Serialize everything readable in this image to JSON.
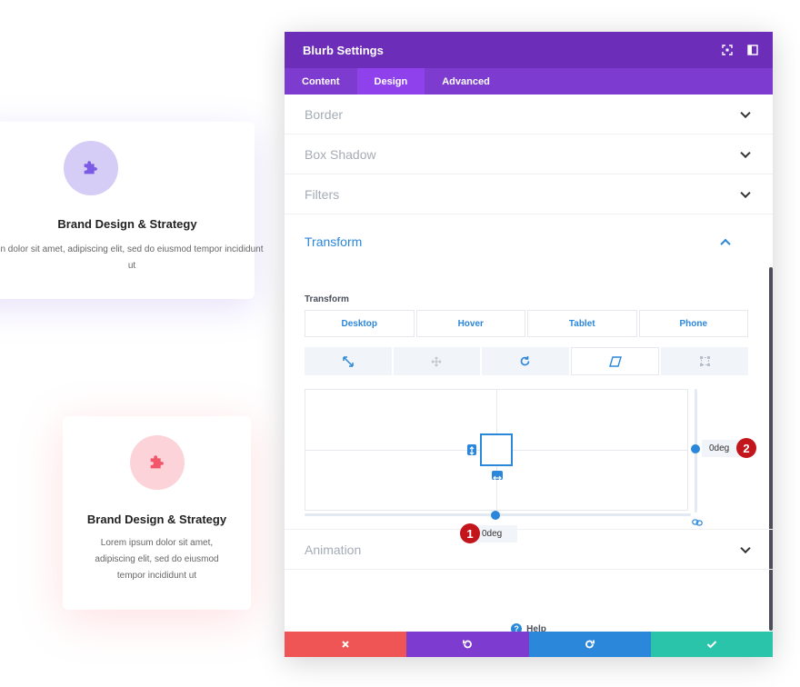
{
  "cards": [
    {
      "title": "Brand Design & Strategy",
      "text": "n dolor sit amet, adipiscing elit, sed do eiusmod tempor incididunt ut",
      "icon": "puzzle-icon",
      "accent": "#7b5ae6"
    },
    {
      "title": "Brand Design & Strategy",
      "text": "Lorem ipsum dolor sit amet, adipiscing elit, sed do eiusmod tempor incididunt ut",
      "icon": "puzzle-icon",
      "accent": "#f2566a"
    }
  ],
  "modal": {
    "title": "Blurb Settings",
    "header_icons": [
      "expand-icon",
      "sidebar-toggle-icon"
    ],
    "tabs": [
      {
        "label": "Content",
        "active": false
      },
      {
        "label": "Design",
        "active": true
      },
      {
        "label": "Advanced",
        "active": false
      }
    ],
    "sections_top": [
      {
        "label": "Border"
      },
      {
        "label": "Box Shadow"
      },
      {
        "label": "Filters"
      }
    ],
    "transform": {
      "title": "Transform",
      "sublabel": "Transform",
      "devices": [
        "Desktop",
        "Hover",
        "Tablet",
        "Phone"
      ],
      "tools": [
        {
          "icon": "scale-icon",
          "active": false
        },
        {
          "icon": "translate-icon",
          "active": false
        },
        {
          "icon": "rotate-icon",
          "active": false
        },
        {
          "icon": "skew-icon",
          "active": true
        },
        {
          "icon": "origin-icon",
          "active": false
        }
      ],
      "skew_x": "0deg",
      "skew_y": "0deg",
      "marker_x": "1",
      "marker_y": "2"
    },
    "sections_bottom": [
      {
        "label": "Animation"
      }
    ],
    "help_label": "Help",
    "footer": {
      "cancel_icon": "close-icon",
      "undo_icon": "undo-icon",
      "redo_icon": "redo-icon",
      "save_icon": "check-icon"
    }
  },
  "colors": {
    "header": "#6c2eb9",
    "tabbar": "#7e3bd0",
    "accent_blue": "#2b87da",
    "cancel": "#ef5555",
    "save": "#29c4a9",
    "marker": "#c3161c"
  }
}
